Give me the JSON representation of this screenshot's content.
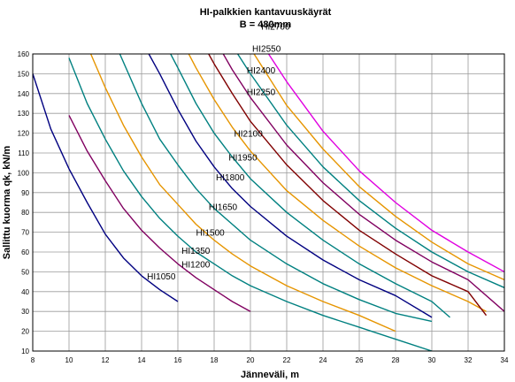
{
  "chart_data": {
    "type": "line",
    "title": "HI-palkkien kantavuuskäyrät",
    "subtitle": "B = 480mm",
    "xlabel": "Jänneväli, m",
    "ylabel": "Sallittu kuorma qk, kN/m",
    "xlim": [
      8,
      34
    ],
    "ylim": [
      10,
      160
    ],
    "xticks": [
      8,
      10,
      12,
      14,
      16,
      18,
      20,
      22,
      24,
      26,
      28,
      30,
      32,
      34
    ],
    "yticks": [
      10,
      20,
      30,
      40,
      50,
      60,
      70,
      80,
      90,
      100,
      110,
      120,
      130,
      140,
      150,
      160
    ],
    "grid": true,
    "legend": "inline labels",
    "series": [
      {
        "name": "HI1050",
        "color": "#000080",
        "label_at": [
          14.3,
          48
        ],
        "x": [
          8,
          9,
          10,
          11,
          12,
          13,
          14,
          15,
          16
        ],
        "y": [
          150,
          122,
          102,
          85,
          69,
          57,
          48,
          41,
          35
        ]
      },
      {
        "name": "HI1200",
        "color": "#800060",
        "label_at": [
          16.2,
          54
        ],
        "x": [
          10,
          11,
          12,
          13,
          14,
          15,
          16,
          17,
          18,
          19,
          20
        ],
        "y": [
          129,
          111,
          96,
          82,
          71,
          62,
          54,
          47,
          41,
          35,
          30
        ]
      },
      {
        "name": "HI1350",
        "color": "#008080",
        "label_at": [
          16.2,
          61
        ],
        "x": [
          10,
          11,
          12,
          13,
          14,
          15,
          16,
          17,
          18,
          19,
          20,
          22,
          24,
          26,
          28,
          30
        ],
        "y": [
          158,
          135,
          117,
          101,
          88,
          77,
          68,
          60,
          54,
          48,
          43,
          35,
          28,
          22,
          16,
          10
        ]
      },
      {
        "name": "HI1500",
        "color": "#e69500",
        "label_at": [
          17.0,
          70
        ],
        "x": [
          11.2,
          12,
          13,
          14,
          15,
          16,
          17,
          18,
          19,
          20,
          22,
          24,
          26,
          28
        ],
        "y": [
          160,
          143,
          124,
          108,
          94,
          84,
          74,
          66,
          59,
          53,
          43,
          35,
          28,
          20
        ]
      },
      {
        "name": "HI1650",
        "color": "#008080",
        "label_at": [
          17.7,
          83
        ],
        "x": [
          12.8,
          14,
          15,
          16,
          17,
          18,
          19,
          20,
          22,
          24,
          26,
          28,
          30
        ],
        "y": [
          160,
          135,
          117,
          104,
          92,
          82,
          74,
          66,
          54,
          44,
          36,
          29,
          25
        ]
      },
      {
        "name": "HI1800",
        "color": "#000080",
        "label_at": [
          18.1,
          98
        ],
        "x": [
          14.4,
          15,
          16,
          17,
          18,
          19,
          20,
          22,
          24,
          26,
          28,
          30
        ],
        "y": [
          160,
          150,
          132,
          116,
          103,
          92,
          83,
          68,
          56,
          46,
          38,
          27
        ]
      },
      {
        "name": "HI1950",
        "color": "#008080",
        "label_at": [
          18.8,
          108
        ],
        "x": [
          15.6,
          16,
          17,
          18,
          19,
          20,
          22,
          24,
          26,
          28,
          30,
          31
        ],
        "y": [
          160,
          153,
          135,
          120,
          108,
          97,
          80,
          66,
          54,
          44,
          35,
          27
        ]
      },
      {
        "name": "HI2100",
        "color": "#e69500",
        "label_at": [
          19.1,
          120
        ],
        "x": [
          16.6,
          17,
          18,
          19,
          20,
          22,
          24,
          26,
          28,
          30,
          32,
          33
        ],
        "y": [
          160,
          153,
          137,
          123,
          111,
          91,
          76,
          63,
          52,
          43,
          35,
          30
        ]
      },
      {
        "name": "HI2250",
        "color": "#800000",
        "label_at": [
          19.8,
          141
        ],
        "x": [
          17.7,
          18,
          19,
          20,
          22,
          24,
          26,
          28,
          30,
          32,
          33
        ],
        "y": [
          160,
          155,
          140,
          126,
          104,
          86,
          71,
          59,
          48,
          40,
          28
        ]
      },
      {
        "name": "HI2400",
        "color": "#800060",
        "label_at": [
          19.8,
          152
        ],
        "x": [
          18.5,
          19,
          20,
          22,
          24,
          26,
          28,
          30,
          32,
          34
        ],
        "y": [
          160,
          152,
          138,
          114,
          95,
          79,
          66,
          55,
          46,
          30
        ]
      },
      {
        "name": "HI2550",
        "color": "#008080",
        "label_at": [
          20.1,
          163
        ],
        "x": [
          19.3,
          20,
          22,
          24,
          26,
          28,
          30,
          32,
          34
        ],
        "y": [
          160,
          150,
          124,
          103,
          86,
          72,
          60,
          50,
          42
        ]
      },
      {
        "name": "HI2700",
        "color": "#e69500",
        "label_at": [
          20.6,
          174
        ],
        "x": [
          20.2,
          22,
          24,
          26,
          28,
          30,
          32,
          34
        ],
        "y": [
          160,
          134,
          112,
          93,
          78,
          65,
          54,
          46
        ]
      },
      {
        "name": "",
        "color": "#e000e0",
        "label_at": null,
        "x": [
          21,
          22,
          24,
          26,
          28,
          30,
          32,
          34
        ],
        "y": [
          160,
          146,
          121,
          101,
          85,
          71,
          60,
          50
        ]
      }
    ]
  }
}
